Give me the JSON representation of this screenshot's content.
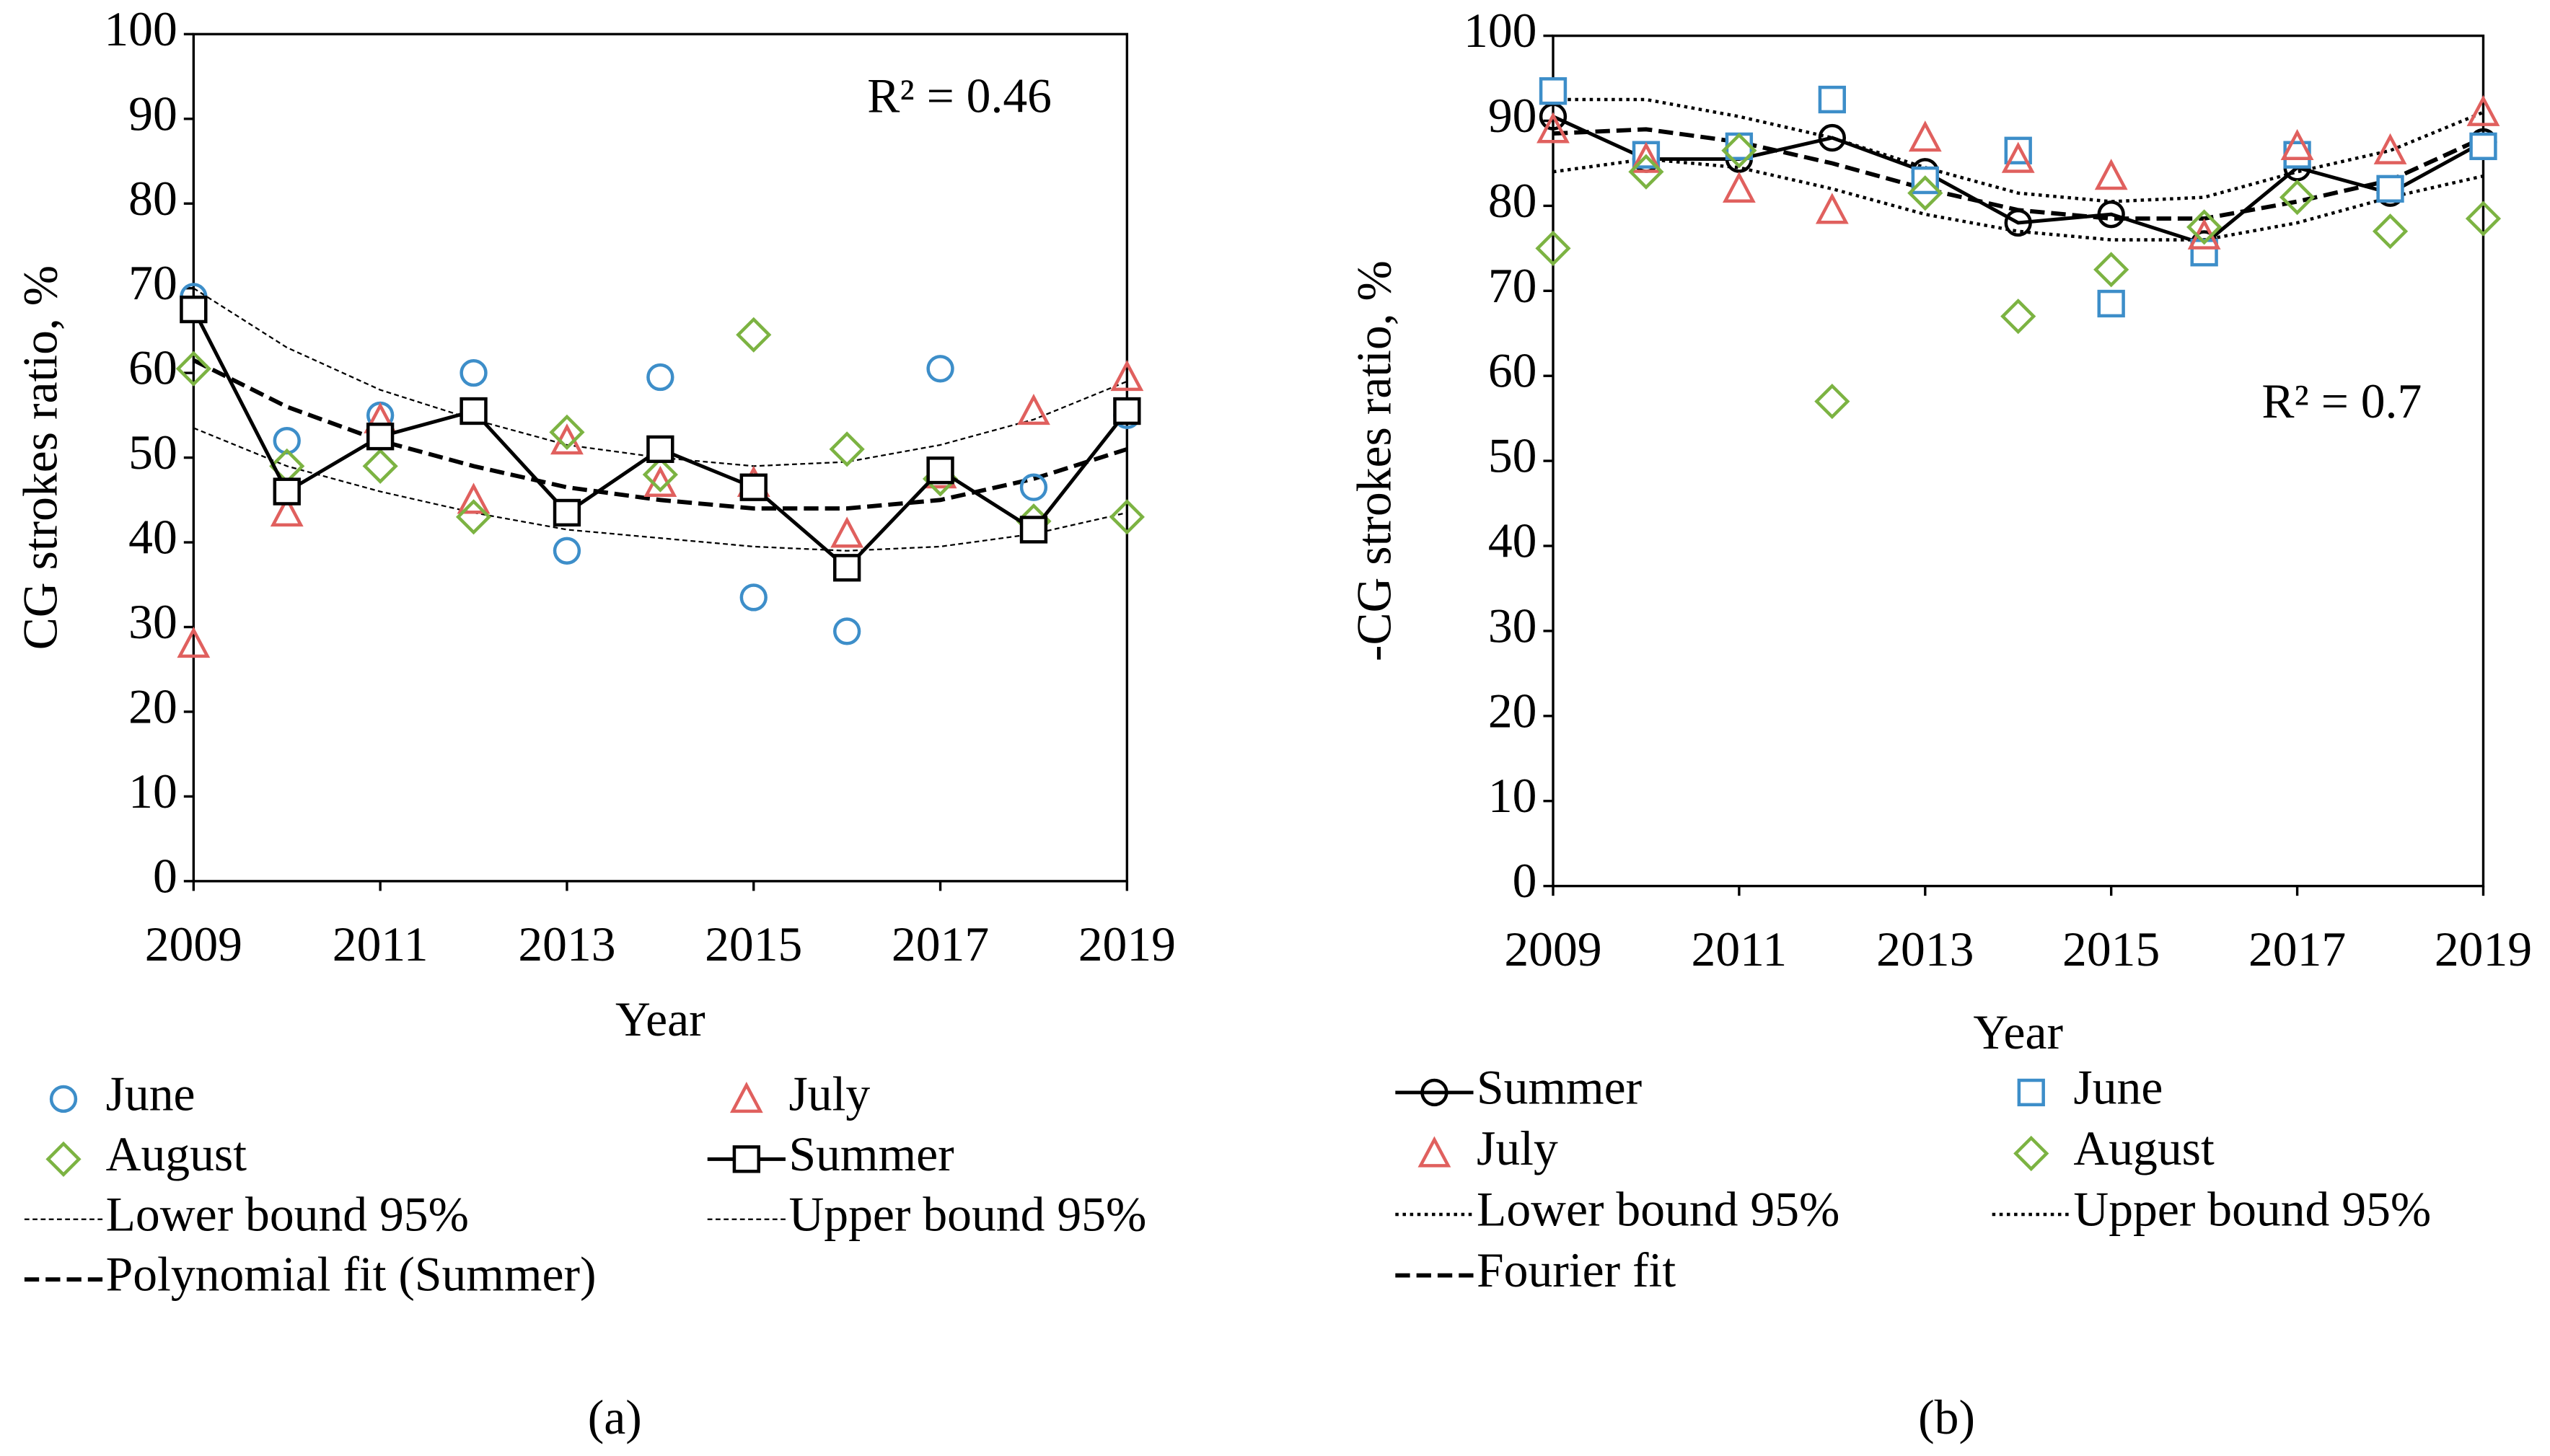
{
  "chart_data": [
    {
      "type": "line",
      "panel_label": "(a)",
      "annotation": "R² = 0.46",
      "x_label": "Year",
      "y_label": "CG strokes ratio, %",
      "x": [
        2009,
        2010,
        2011,
        2012,
        2013,
        2014,
        2015,
        2016,
        2017,
        2018,
        2019
      ],
      "xlim": [
        2009,
        2019
      ],
      "xticks": [
        2009,
        2011,
        2013,
        2015,
        2017,
        2019
      ],
      "ylim": [
        0,
        100
      ],
      "yticks": [
        0,
        10,
        20,
        30,
        40,
        50,
        60,
        70,
        80,
        90,
        100
      ],
      "series": [
        {
          "name": "June",
          "color": "#3d8ec9",
          "marker": "circle",
          "line": "none",
          "values": [
            69,
            52,
            55,
            60,
            39,
            59.5,
            33.5,
            29.5,
            60.5,
            46.5,
            55
          ]
        },
        {
          "name": "July",
          "color": "#e0605e",
          "marker": "triangle",
          "line": "none",
          "values": [
            28,
            43.5,
            54.5,
            45,
            52,
            47,
            47,
            41,
            48,
            55.5,
            59.5
          ]
        },
        {
          "name": "August",
          "color": "#7cb342",
          "marker": "diamond",
          "line": "none",
          "values": [
            60.5,
            49,
            49,
            43,
            53,
            48,
            64.5,
            51,
            47.5,
            42.5,
            43
          ]
        },
        {
          "name": "Summer",
          "color": "#000000",
          "marker": "square",
          "line": "solid",
          "values": [
            67.5,
            46,
            52.5,
            55.5,
            43.5,
            51,
            46.5,
            37,
            48.5,
            41.5,
            55.5
          ]
        },
        {
          "name": "Lower bound 95%",
          "color": "#000000",
          "marker": "none",
          "line": "thin-dashed",
          "values": [
            53.5,
            49,
            46,
            43.5,
            41.5,
            40.5,
            39.5,
            39,
            39.5,
            41,
            43.5
          ]
        },
        {
          "name": "Upper bound 95%",
          "color": "#000000",
          "marker": "none",
          "line": "thin-dashed",
          "values": [
            70,
            63,
            58,
            54.5,
            51.5,
            50,
            49,
            49.5,
            51.5,
            54.5,
            59
          ]
        },
        {
          "name": "Polynomial fit (Summer)",
          "color": "#000000",
          "marker": "none",
          "line": "dashed",
          "values": [
            61.5,
            56,
            52,
            49,
            46.5,
            45,
            44,
            44,
            45,
            47.5,
            51
          ]
        }
      ]
    },
    {
      "type": "line",
      "panel_label": "(b)",
      "annotation": "R² = 0.7",
      "x_label": "Year",
      "y_label": "-CG strokes ratio, %",
      "x": [
        2009,
        2010,
        2011,
        2012,
        2013,
        2014,
        2015,
        2016,
        2017,
        2018,
        2019
      ],
      "xlim": [
        2009,
        2019
      ],
      "xticks": [
        2009,
        2011,
        2013,
        2015,
        2017,
        2019
      ],
      "ylim": [
        0,
        100
      ],
      "yticks": [
        0,
        10,
        20,
        30,
        40,
        50,
        60,
        70,
        80,
        90,
        100
      ],
      "series": [
        {
          "name": "Summer",
          "color": "#000000",
          "marker": "circle",
          "line": "solid",
          "values": [
            90.5,
            85.5,
            85.5,
            88,
            84,
            78,
            79,
            75.5,
            84.5,
            81.5,
            87.5
          ]
        },
        {
          "name": "June",
          "color": "#3d8ec9",
          "marker": "square",
          "line": "none",
          "values": [
            93.5,
            86,
            87,
            92.5,
            83,
            86.5,
            68.5,
            74.5,
            86,
            82,
            87
          ]
        },
        {
          "name": "July",
          "color": "#e0605e",
          "marker": "triangle",
          "line": "none",
          "values": [
            89,
            85.5,
            82,
            79.5,
            88,
            85.5,
            83.5,
            76.5,
            87,
            86.5,
            91
          ]
        },
        {
          "name": "August",
          "color": "#7cb342",
          "marker": "diamond",
          "line": "none",
          "values": [
            75,
            84,
            86.5,
            57,
            81.5,
            67,
            72.5,
            77.5,
            81,
            77,
            78.5
          ]
        },
        {
          "name": "Lower bound 95%",
          "color": "#000000",
          "marker": "none",
          "line": "dotted",
          "values": [
            84,
            85.5,
            84.5,
            82,
            79,
            77,
            76,
            76,
            78,
            81,
            83.5
          ]
        },
        {
          "name": "Upper bound 95%",
          "color": "#000000",
          "marker": "none",
          "line": "dotted",
          "values": [
            92.5,
            92.5,
            90.5,
            88,
            84.5,
            81.5,
            80.5,
            81,
            84,
            86.5,
            91
          ]
        },
        {
          "name": "Fourier fit",
          "color": "#000000",
          "marker": "none",
          "line": "dashed",
          "values": [
            88.5,
            89,
            87.5,
            85,
            82,
            79.5,
            78.5,
            78.5,
            80.5,
            83,
            88
          ]
        }
      ]
    }
  ]
}
